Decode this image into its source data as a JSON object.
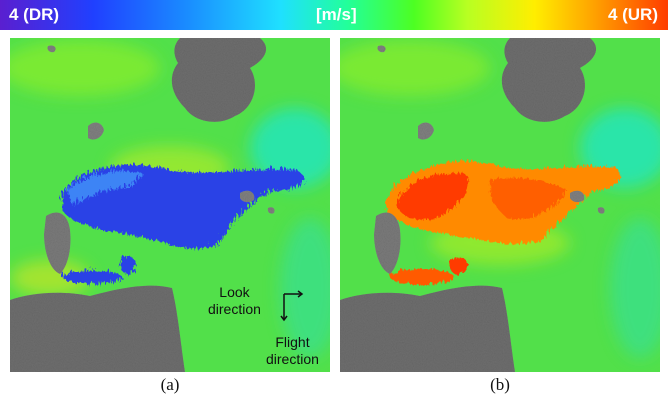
{
  "colorbar": {
    "left_label": "4 (DR)",
    "mid_label": "[m/s]",
    "right_label": "4 (UR)",
    "colors": [
      "#5a1fd0",
      "#2040ff",
      "#1fe0ff",
      "#4dff22",
      "#ffee00",
      "#ff6a00",
      "#ff3d00"
    ]
  },
  "panels": [
    {
      "caption": "(a)",
      "annotation": {
        "look_line1": "Look",
        "look_line2": "direction",
        "flight_line1": "Flight",
        "flight_line2": "direction"
      }
    },
    {
      "caption": "(b)"
    }
  ],
  "colors": {
    "sea_base": "#52e04a",
    "sea_cyan": "#22e6c0",
    "sea_yellow": "#c8ee1e",
    "land": "#6e6e6e",
    "land_light": "#8a8a8a",
    "downrange_blue": "#2a43e6",
    "uprange_red": "#ff3a00",
    "uprange_orange": "#ff8a00"
  }
}
